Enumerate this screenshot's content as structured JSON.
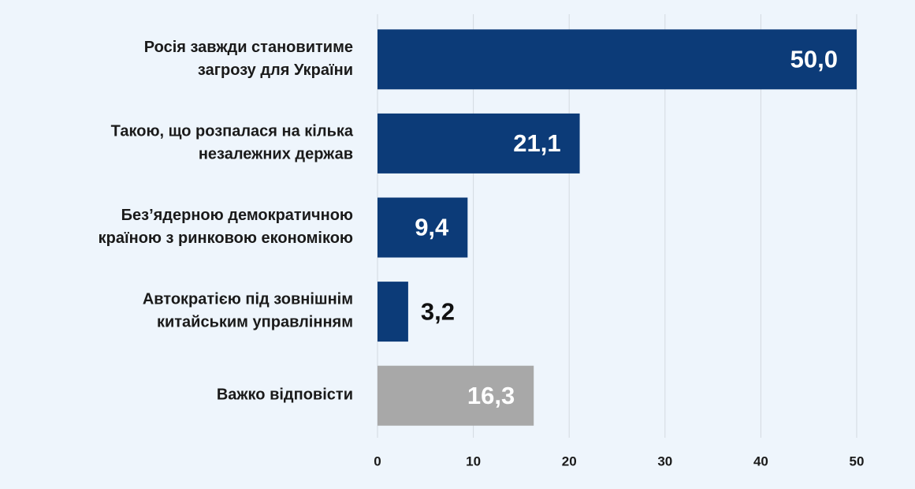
{
  "chart_data": {
    "type": "barh",
    "categories": [
      "Росія завжди становитиме\nзагрозу для України",
      "Такою, що розпалася на кілька\nнезалежних держав",
      "Без’ядерною демократичною\nкраїною з ринковою економікою",
      "Автократією під зовнішнім\nкитайським управлінням",
      "Важко відповісти"
    ],
    "values": [
      50.0,
      21.1,
      9.4,
      3.2,
      16.3
    ],
    "value_labels": [
      "50,0",
      "21,1",
      "9,4",
      "3,2",
      "16,3"
    ],
    "colors": [
      "#0c3b78",
      "#0c3b78",
      "#0c3b78",
      "#0c3b78",
      "#a8a8a8"
    ],
    "xlim": [
      0,
      50
    ],
    "xticks": [
      0,
      10,
      20,
      30,
      40,
      50
    ],
    "grid": true
  }
}
